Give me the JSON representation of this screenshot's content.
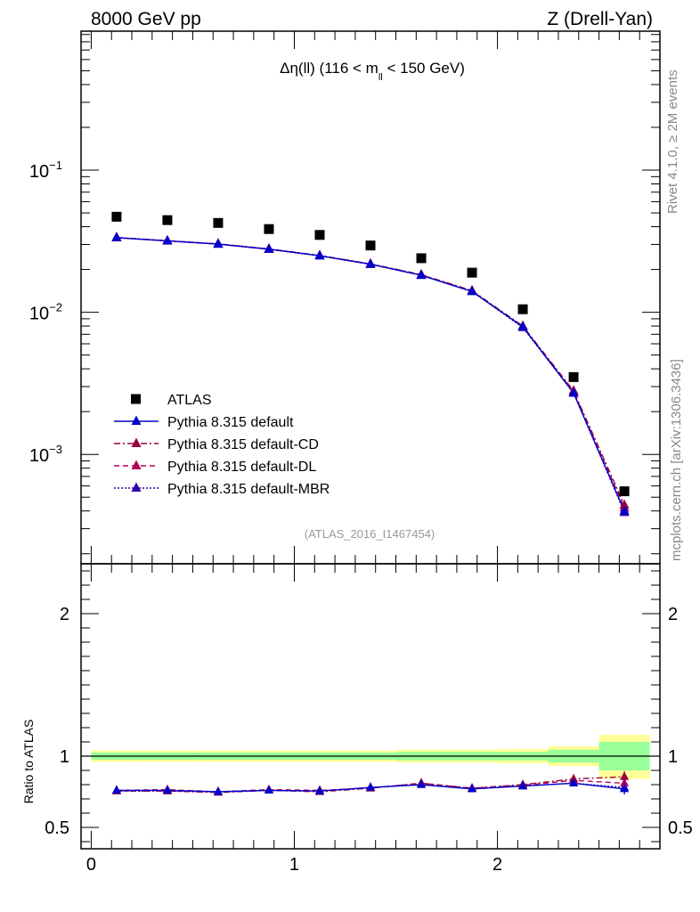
{
  "header": {
    "left": "8000 GeV pp",
    "right": "Z (Drell-Yan)"
  },
  "side_labels": {
    "rivet": "Rivet 4.1.0, ≥ 2M events",
    "mcplots": "mcplots.cern.ch [arXiv:1306.3436]"
  },
  "colors": {
    "data": "#000000",
    "default": "#0000cc",
    "cd": "#99003d",
    "dl": "#b3005c",
    "mbr": "#3300aa",
    "band_yellow": "#ffff99",
    "band_green": "#99ff99"
  },
  "chart_data": [
    {
      "type": "scatter",
      "panel": "main",
      "title": "Δη(ll) (116 < m_ll < 150 GeV)",
      "title_parts": {
        "pre": "Δη(ll) (116 < m",
        "sub": "ll",
        "post": " < 150 GeV)"
      },
      "watermark": "(ATLAS_2016_I1467454)",
      "yscale": "log",
      "ylim": [
        0.00017,
        0.95
      ],
      "xlim": [
        -0.05,
        2.8
      ],
      "y_tick_labels": [
        {
          "value": 0.1,
          "base": "10",
          "exp": "−1"
        },
        {
          "value": 0.01,
          "base": "10",
          "exp": "−2"
        },
        {
          "value": 0.001,
          "base": "10",
          "exp": "−3"
        }
      ],
      "legend_position": "bottom-left",
      "x": [
        0.125,
        0.375,
        0.625,
        0.875,
        1.125,
        1.375,
        1.625,
        1.875,
        2.125,
        2.375,
        2.625
      ],
      "series": [
        {
          "name": "ATLAS",
          "color_key": "data",
          "style": "marker",
          "values": [
            0.047,
            0.0445,
            0.0425,
            0.0385,
            0.035,
            0.0295,
            0.024,
            0.019,
            0.0105,
            0.0035,
            0.00055
          ]
        },
        {
          "name": "Pythia 8.315 default",
          "color_key": "default",
          "style": "solid",
          "values": [
            0.0335,
            0.0318,
            0.0302,
            0.0278,
            0.025,
            0.0218,
            0.0182,
            0.014,
            0.0079,
            0.0027,
            0.0004
          ]
        },
        {
          "name": "Pythia 8.315 default-CD",
          "color_key": "cd",
          "style": "dashdot",
          "values": [
            0.0336,
            0.0319,
            0.0303,
            0.0279,
            0.0251,
            0.0219,
            0.0184,
            0.0142,
            0.008,
            0.0028,
            0.00044
          ]
        },
        {
          "name": "Pythia 8.315 default-DL",
          "color_key": "dl",
          "style": "dashed",
          "values": [
            0.0335,
            0.0318,
            0.0302,
            0.0278,
            0.025,
            0.0218,
            0.0183,
            0.0141,
            0.0079,
            0.00275,
            0.00042
          ]
        },
        {
          "name": "Pythia 8.315 default-MBR",
          "color_key": "mbr",
          "style": "dotted",
          "values": [
            0.0334,
            0.0317,
            0.0301,
            0.0277,
            0.0249,
            0.0217,
            0.0182,
            0.014,
            0.0078,
            0.0027,
            0.00039
          ]
        }
      ]
    },
    {
      "type": "line",
      "panel": "ratio",
      "ylabel": "Ratio to ATLAS",
      "ylim": [
        0.35,
        2.35
      ],
      "xlim": [
        -0.05,
        2.8
      ],
      "y_tick_labels": [
        {
          "value": 0.5,
          "label": "0.5"
        },
        {
          "value": 1,
          "label": "1"
        },
        {
          "value": 2,
          "label": "2"
        }
      ],
      "x_tick_labels": [
        {
          "value": 0,
          "label": "0"
        },
        {
          "value": 1,
          "label": "1"
        },
        {
          "value": 2,
          "label": "2"
        }
      ],
      "x": [
        0.125,
        0.375,
        0.625,
        0.875,
        1.125,
        1.375,
        1.625,
        1.875,
        2.125,
        2.375,
        2.625
      ],
      "bands": {
        "edges": [
          0,
          0.25,
          0.5,
          0.75,
          1.0,
          1.25,
          1.5,
          1.75,
          2.0,
          2.25,
          2.5,
          2.75
        ],
        "yellow": [
          [
            0.96,
            1.04
          ],
          [
            0.96,
            1.04
          ],
          [
            0.96,
            1.04
          ],
          [
            0.96,
            1.04
          ],
          [
            0.96,
            1.04
          ],
          [
            0.96,
            1.04
          ],
          [
            0.955,
            1.045
          ],
          [
            0.955,
            1.045
          ],
          [
            0.95,
            1.05
          ],
          [
            0.93,
            1.07
          ],
          [
            0.84,
            1.15
          ]
        ],
        "green": [
          [
            0.975,
            1.025
          ],
          [
            0.975,
            1.025
          ],
          [
            0.975,
            1.025
          ],
          [
            0.975,
            1.025
          ],
          [
            0.975,
            1.025
          ],
          [
            0.975,
            1.025
          ],
          [
            0.97,
            1.03
          ],
          [
            0.97,
            1.03
          ],
          [
            0.97,
            1.03
          ],
          [
            0.955,
            1.045
          ],
          [
            0.9,
            1.1
          ]
        ]
      },
      "series": [
        {
          "name": "Pythia 8.315 default",
          "color_key": "default",
          "style": "solid",
          "values": [
            0.76,
            0.76,
            0.75,
            0.76,
            0.755,
            0.78,
            0.8,
            0.77,
            0.79,
            0.81,
            0.77
          ],
          "errors": [
            0.01,
            0.01,
            0.01,
            0.01,
            0.01,
            0.01,
            0.01,
            0.01,
            0.01,
            0.015,
            0.04
          ]
        },
        {
          "name": "Pythia 8.315 default-CD",
          "color_key": "cd",
          "style": "dashdot",
          "values": [
            0.755,
            0.755,
            0.745,
            0.76,
            0.75,
            0.775,
            0.81,
            0.775,
            0.8,
            0.84,
            0.855
          ],
          "errors": [
            0.01,
            0.01,
            0.01,
            0.01,
            0.01,
            0.01,
            0.01,
            0.01,
            0.01,
            0.015,
            0.04
          ]
        },
        {
          "name": "Pythia 8.315 default-DL",
          "color_key": "dl",
          "style": "dashed",
          "values": [
            0.76,
            0.765,
            0.75,
            0.765,
            0.76,
            0.775,
            0.81,
            0.775,
            0.795,
            0.83,
            0.81
          ],
          "errors": [
            0.01,
            0.01,
            0.01,
            0.01,
            0.01,
            0.01,
            0.01,
            0.01,
            0.01,
            0.015,
            0.04
          ]
        },
        {
          "name": "Pythia 8.315 default-MBR",
          "color_key": "mbr",
          "style": "dotted",
          "values": [
            0.755,
            0.755,
            0.75,
            0.76,
            0.755,
            0.78,
            0.8,
            0.77,
            0.79,
            0.81,
            0.78
          ],
          "errors": [
            0.01,
            0.01,
            0.01,
            0.01,
            0.01,
            0.01,
            0.01,
            0.01,
            0.01,
            0.015,
            0.04
          ]
        }
      ]
    }
  ]
}
